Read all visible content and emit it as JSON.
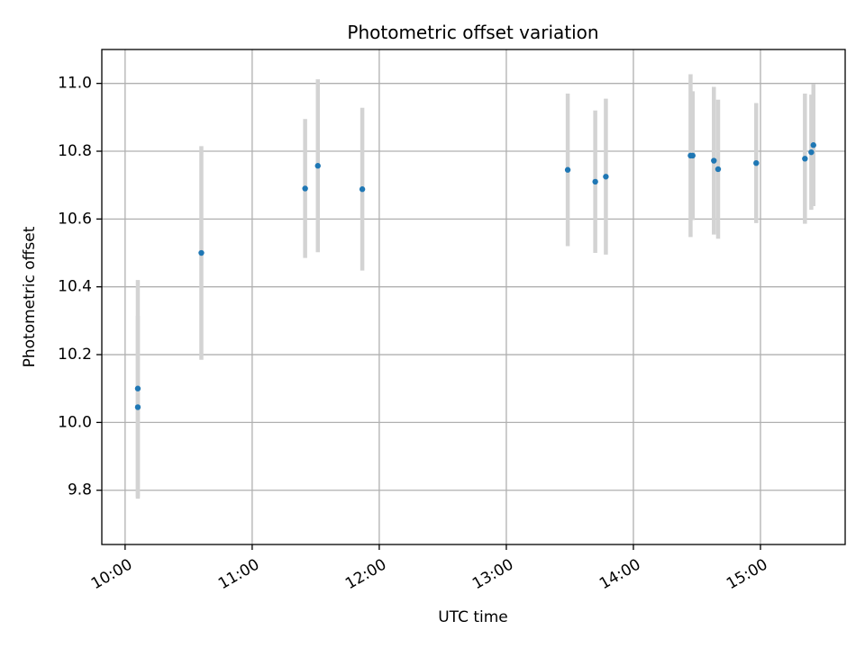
{
  "chart_data": {
    "type": "scatter",
    "title": "Photometric offset variation",
    "xlabel": "UTC time",
    "ylabel": "Photometric offset",
    "x_tick_labels": [
      "10:00",
      "11:00",
      "12:00",
      "13:00",
      "14:00",
      "15:00"
    ],
    "x_ticks": [
      "10:00",
      "11:00",
      "12:00",
      "13:00",
      "14:00",
      "15:00"
    ],
    "y_ticks": [
      9.8,
      10.0,
      10.2,
      10.4,
      10.6,
      10.8,
      11.0
    ],
    "y_tick_labels": [
      "9.8",
      "10.0",
      "10.2",
      "10.4",
      "10.6",
      "10.8",
      "11.0"
    ],
    "xlim": [
      "09:49",
      "15:40"
    ],
    "ylim": [
      9.64,
      11.1
    ],
    "grid": true,
    "point_color": "#1f77b4",
    "errorbar_color": "#d3d3d3",
    "series": [
      {
        "points": [
          {
            "x": "10:06",
            "y": 10.045,
            "yerr": 0.27
          },
          {
            "x": "10:06",
            "y": 10.1,
            "yerr": 0.32
          },
          {
            "x": "10:36",
            "y": 10.5,
            "yerr": 0.315
          },
          {
            "x": "11:25",
            "y": 10.69,
            "yerr": 0.205
          },
          {
            "x": "11:31",
            "y": 10.757,
            "yerr": 0.255
          },
          {
            "x": "11:52",
            "y": 10.688,
            "yerr": 0.24
          },
          {
            "x": "13:29",
            "y": 10.745,
            "yerr": 0.225
          },
          {
            "x": "13:42",
            "y": 10.71,
            "yerr": 0.21
          },
          {
            "x": "13:47",
            "y": 10.725,
            "yerr": 0.23
          },
          {
            "x": "14:27",
            "y": 10.787,
            "yerr": 0.24
          },
          {
            "x": "14:28",
            "y": 10.787,
            "yerr": 0.19
          },
          {
            "x": "14:38",
            "y": 10.772,
            "yerr": 0.218
          },
          {
            "x": "14:40",
            "y": 10.747,
            "yerr": 0.205
          },
          {
            "x": "14:58",
            "y": 10.765,
            "yerr": 0.177
          },
          {
            "x": "15:21",
            "y": 10.778,
            "yerr": 0.192
          },
          {
            "x": "15:24",
            "y": 10.797,
            "yerr": 0.17
          },
          {
            "x": "15:25",
            "y": 10.818,
            "yerr": 0.18
          }
        ]
      }
    ]
  }
}
